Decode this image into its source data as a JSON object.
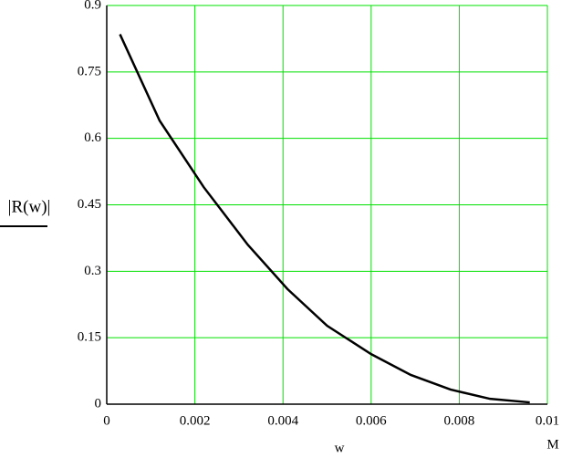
{
  "chart_data": {
    "type": "line",
    "y_label": "|R(w)|",
    "x_label": "w",
    "x_unit": "M",
    "x": [
      0.0003,
      0.0012,
      0.0022,
      0.0032,
      0.0041,
      0.005,
      0.006,
      0.0069,
      0.0078,
      0.0087,
      0.0096
    ],
    "values": [
      0.835,
      0.64,
      0.49,
      0.36,
      0.26,
      0.177,
      0.113,
      0.066,
      0.033,
      0.012,
      0.004
    ],
    "color": "#000000",
    "grid": true,
    "grid_color": "#00e000",
    "xlim": [
      0,
      0.01
    ],
    "xticks": [
      0,
      0.002,
      0.004,
      0.006,
      0.008,
      0.01
    ],
    "ylim": [
      0,
      0.9
    ],
    "yticks": [
      0,
      0.15,
      0.3,
      0.45,
      0.6,
      0.75,
      0.9
    ]
  }
}
